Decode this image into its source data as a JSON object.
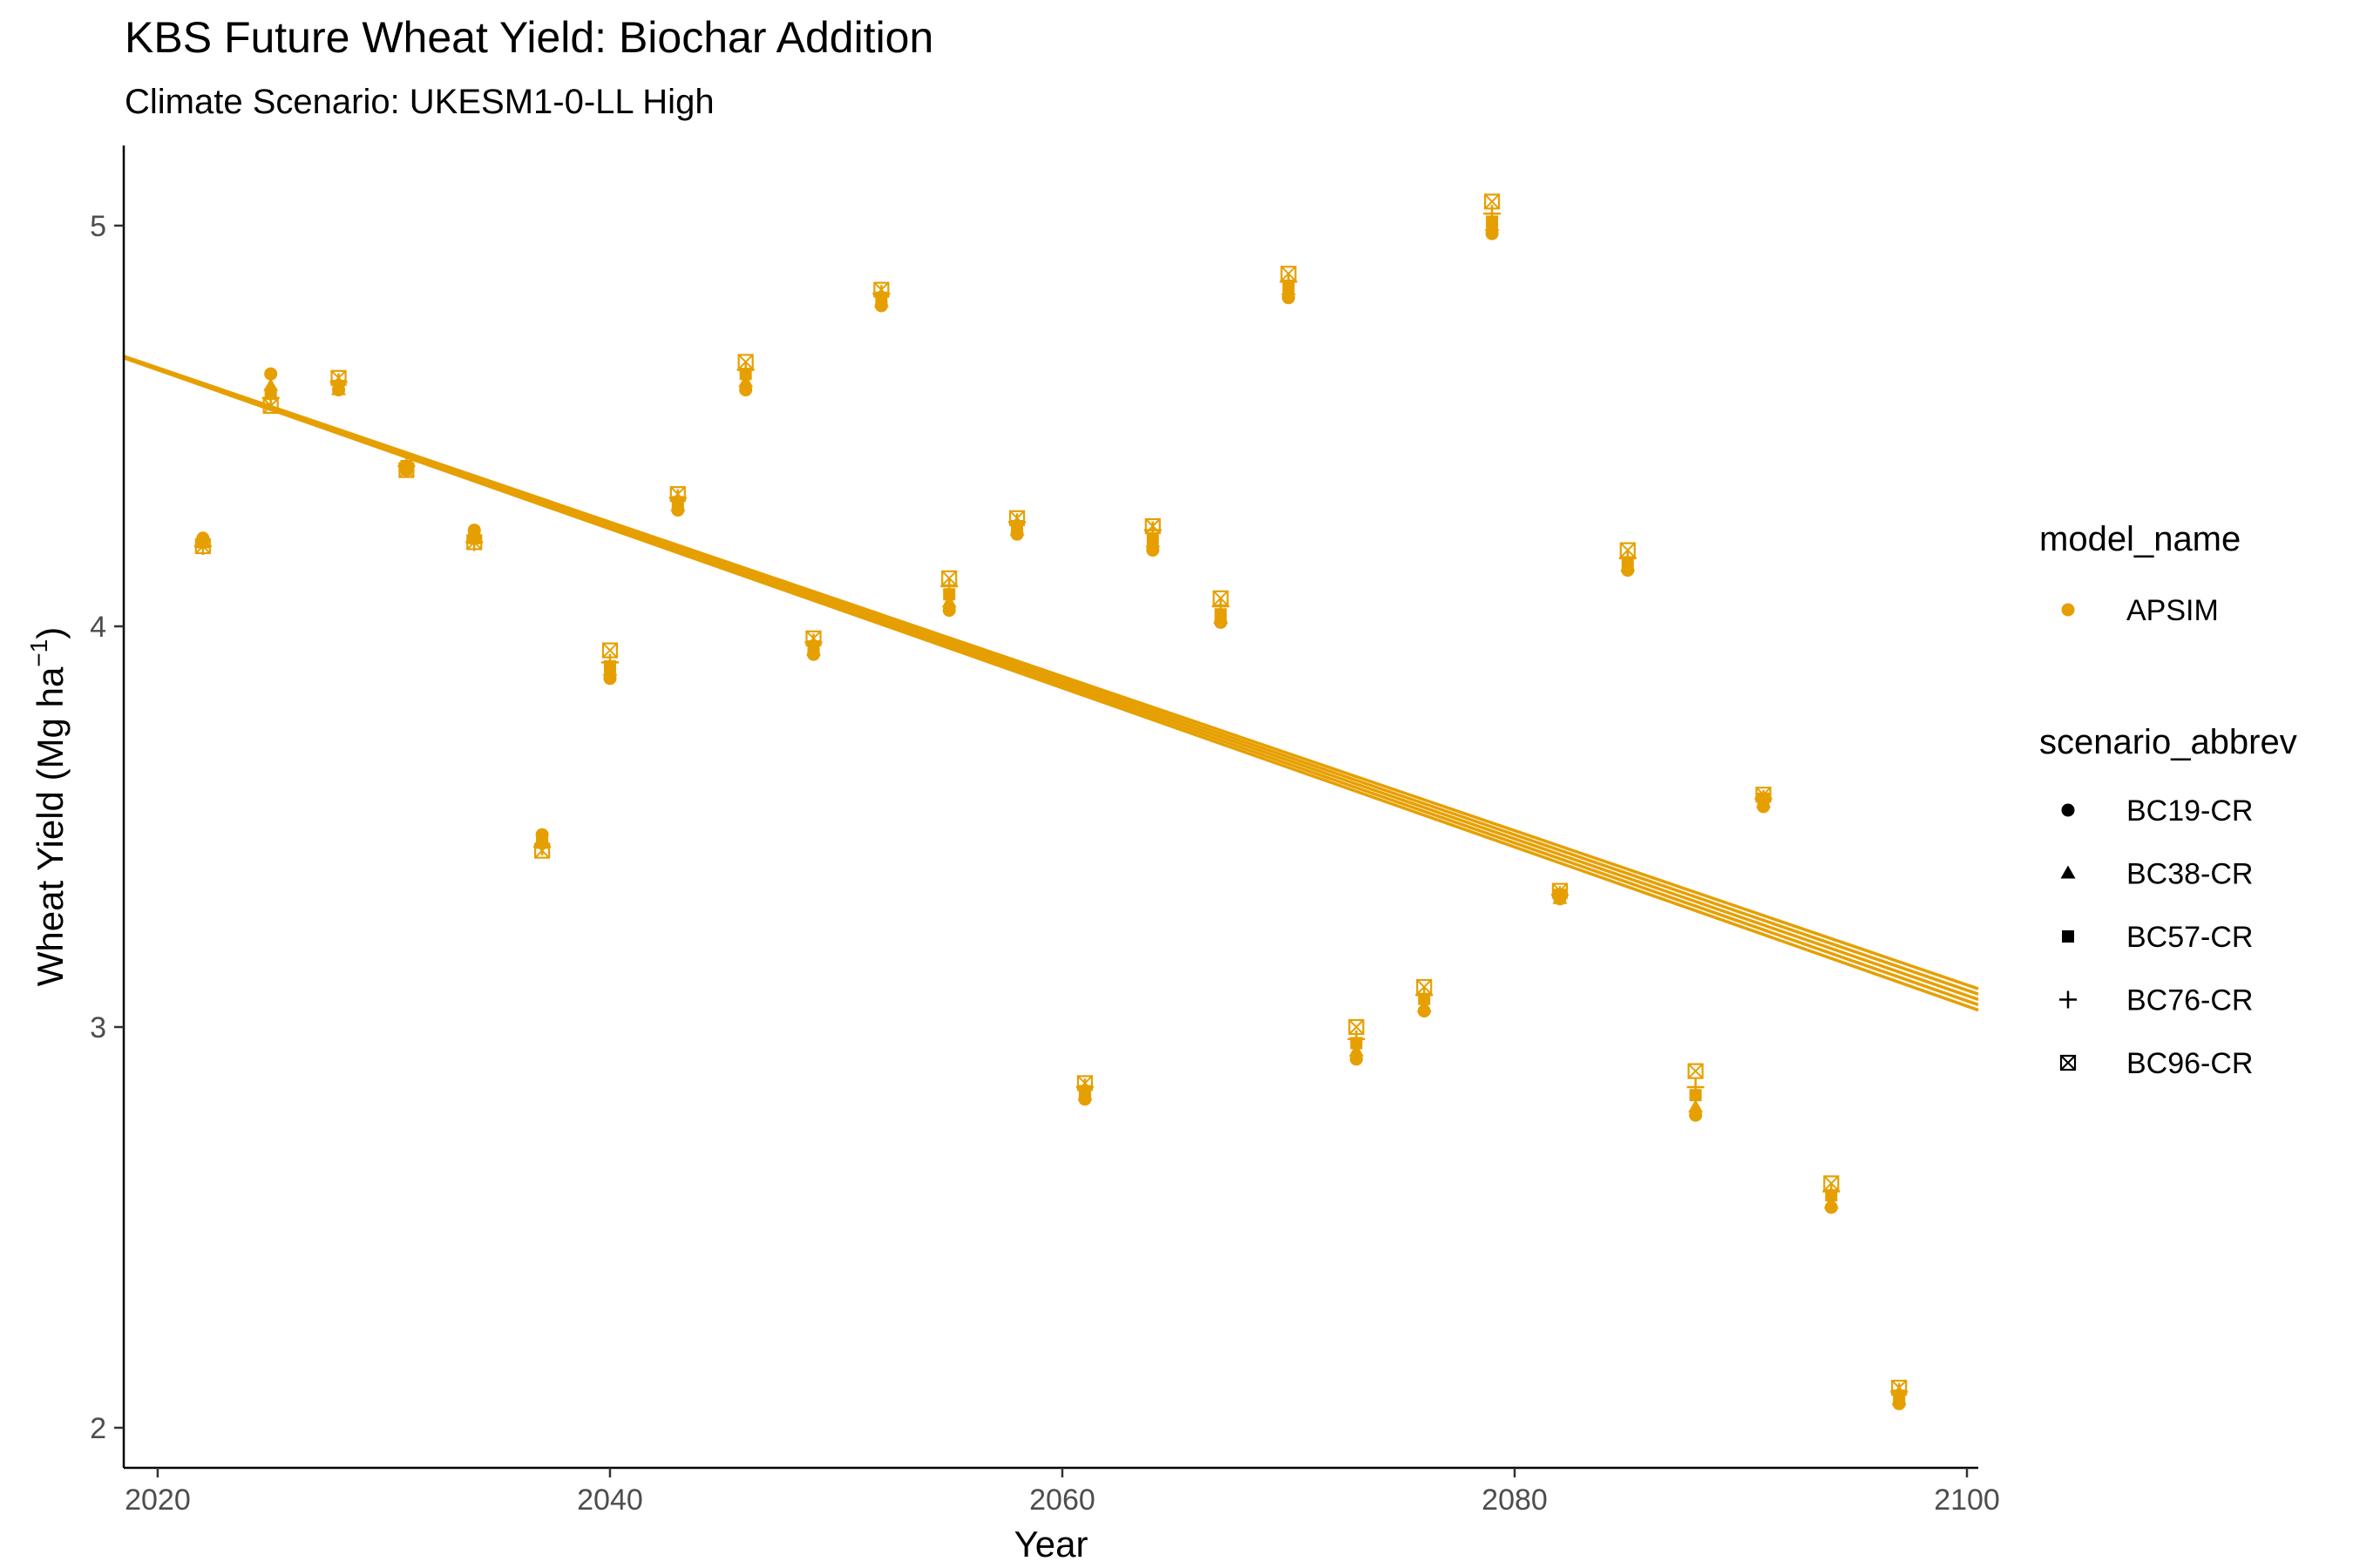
{
  "chart_data": {
    "type": "scatter",
    "title": "KBS Future Wheat Yield: Biochar Addition",
    "subtitle": "Climate Scenario: UKESM1-0-LL High",
    "xlabel": "Year",
    "ylabel_main": "Wheat Yield (Mg ha",
    "ylabel_sup": "−1",
    "ylabel_close": ")",
    "xlim": [
      2018.5,
      2100.5
    ],
    "ylim": [
      1.9,
      5.2
    ],
    "x_ticks": [
      2020,
      2040,
      2060,
      2080,
      2100
    ],
    "y_ticks": [
      2,
      3,
      4,
      5
    ],
    "color": "#E69F00",
    "grid": false,
    "legend_position": "right",
    "legend": {
      "color_title": "model_name",
      "color_entries": [
        {
          "label": "APSIM",
          "color": "#E69F00"
        }
      ],
      "shape_title": "scenario_abbrev",
      "shape_entries": [
        {
          "label": "BC19-CR",
          "shape": "circle"
        },
        {
          "label": "BC38-CR",
          "shape": "triangle"
        },
        {
          "label": "BC57-CR",
          "shape": "square"
        },
        {
          "label": "BC76-CR",
          "shape": "plus"
        },
        {
          "label": "BC96-CR",
          "shape": "boxed-x"
        }
      ]
    },
    "x": [
      2022,
      2025,
      2028,
      2031,
      2034,
      2037,
      2040,
      2043,
      2046,
      2049,
      2052,
      2055,
      2058,
      2061,
      2064,
      2067,
      2070,
      2073,
      2076,
      2079,
      2082,
      2085,
      2088,
      2091,
      2094,
      2097
    ],
    "series": [
      {
        "name": "BC19-CR",
        "shape": "circle",
        "values": [
          4.22,
          4.63,
          4.59,
          4.39,
          4.24,
          3.48,
          3.87,
          4.29,
          4.59,
          3.93,
          4.8,
          4.04,
          4.23,
          2.82,
          4.19,
          4.01,
          4.82,
          2.92,
          3.04,
          4.98,
          3.32,
          4.14,
          2.78,
          3.55,
          2.55,
          2.06
        ],
        "trend": [
          4.67,
          -0.01985
        ]
      },
      {
        "name": "BC38-CR",
        "shape": "triangle",
        "values": [
          4.21,
          4.6,
          4.59,
          4.4,
          4.23,
          3.47,
          3.89,
          4.3,
          4.61,
          3.94,
          4.81,
          4.06,
          4.24,
          2.83,
          4.21,
          4.02,
          4.84,
          2.94,
          3.05,
          5.0,
          3.32,
          4.15,
          2.8,
          3.56,
          2.56,
          2.07
        ],
        "trend": [
          4.671,
          -0.0197
        ]
      },
      {
        "name": "BC57-CR",
        "shape": "square",
        "values": [
          4.21,
          4.58,
          4.6,
          4.4,
          4.22,
          3.46,
          3.9,
          4.31,
          4.63,
          3.95,
          4.82,
          4.08,
          4.25,
          2.84,
          4.22,
          4.03,
          4.85,
          2.96,
          3.07,
          5.01,
          3.33,
          4.16,
          2.83,
          3.57,
          2.58,
          2.08
        ],
        "trend": [
          4.672,
          -0.01955
        ]
      },
      {
        "name": "BC76-CR",
        "shape": "plus",
        "values": [
          4.2,
          4.57,
          4.61,
          4.4,
          4.21,
          3.45,
          3.91,
          4.32,
          4.64,
          3.96,
          4.83,
          4.1,
          4.26,
          2.85,
          4.24,
          4.05,
          4.86,
          2.97,
          3.08,
          5.03,
          3.33,
          4.17,
          2.85,
          3.57,
          2.59,
          2.09
        ],
        "trend": [
          4.673,
          -0.0194
        ]
      },
      {
        "name": "BC96-CR",
        "shape": "boxed-x",
        "values": [
          4.2,
          4.55,
          4.62,
          4.39,
          4.21,
          3.44,
          3.94,
          4.33,
          4.66,
          3.97,
          4.84,
          4.12,
          4.27,
          2.86,
          4.25,
          4.07,
          4.88,
          3.0,
          3.1,
          5.06,
          3.34,
          4.19,
          2.89,
          3.58,
          2.61,
          2.1
        ],
        "trend": [
          4.674,
          -0.01925
        ]
      }
    ]
  }
}
